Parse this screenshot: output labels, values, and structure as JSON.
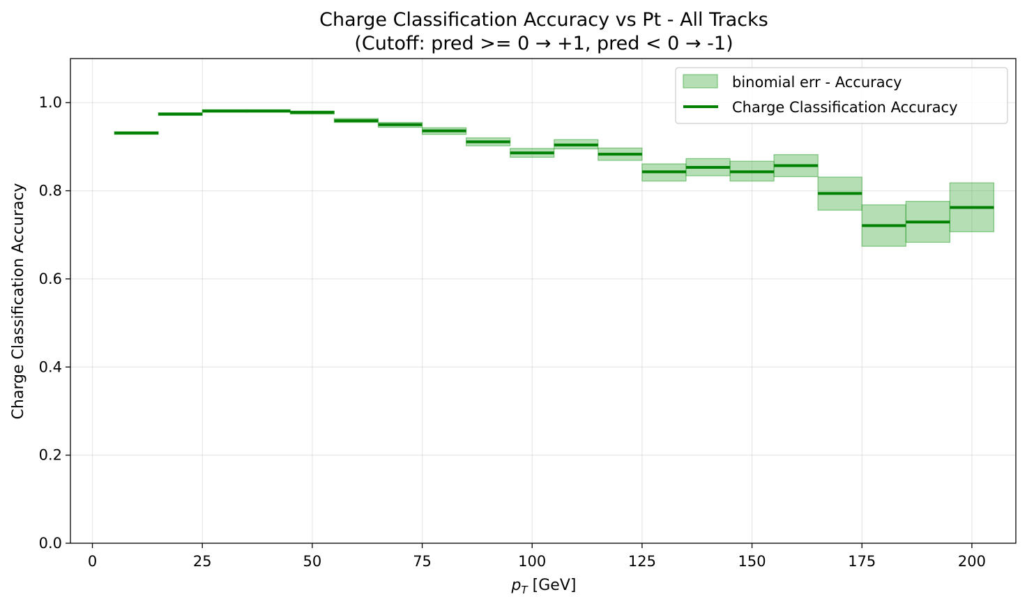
{
  "chart_data": {
    "type": "step",
    "title": "Charge Classification Accuracy vs Pt - All Tracks",
    "subtitle": "(Cutoff: pred >= 0 → +1, pred < 0 → -1)",
    "xlabel_main": "p",
    "xlabel_sub": "T",
    "xlabel_unit": " [GeV]",
    "ylabel": "Charge Classification Accuracy",
    "xlim": [
      -5,
      210
    ],
    "ylim": [
      0.0,
      1.1
    ],
    "xticks": [
      0,
      25,
      50,
      75,
      100,
      125,
      150,
      175,
      200
    ],
    "yticks": [
      0.0,
      0.2,
      0.4,
      0.6,
      0.8,
      1.0
    ],
    "xtick_labels": [
      "0",
      "25",
      "50",
      "75",
      "100",
      "125",
      "150",
      "175",
      "200"
    ],
    "ytick_labels": [
      "0.0",
      "0.2",
      "0.4",
      "0.6",
      "0.8",
      "1.0"
    ],
    "grid": true,
    "legend_position": "top-right",
    "colors": {
      "line": "#008000",
      "band_fill": "#2ca02c",
      "band_edge": "#2ca02c"
    },
    "series": [
      {
        "name": "binomial err - Accuracy",
        "kind": "band",
        "bins": [
          {
            "x0": 5,
            "x1": 15,
            "low": 0.928,
            "high": 0.934
          },
          {
            "x0": 15,
            "x1": 25,
            "low": 0.971,
            "high": 0.977
          },
          {
            "x0": 25,
            "x1": 35,
            "low": 0.978,
            "high": 0.984
          },
          {
            "x0": 35,
            "x1": 45,
            "low": 0.978,
            "high": 0.984
          },
          {
            "x0": 45,
            "x1": 55,
            "low": 0.974,
            "high": 0.981
          },
          {
            "x0": 55,
            "x1": 65,
            "low": 0.955,
            "high": 0.964
          },
          {
            "x0": 65,
            "x1": 75,
            "low": 0.944,
            "high": 0.955
          },
          {
            "x0": 75,
            "x1": 85,
            "low": 0.928,
            "high": 0.943
          },
          {
            "x0": 85,
            "x1": 95,
            "low": 0.902,
            "high": 0.92
          },
          {
            "x0": 95,
            "x1": 105,
            "low": 0.876,
            "high": 0.896
          },
          {
            "x0": 105,
            "x1": 115,
            "low": 0.895,
            "high": 0.916
          },
          {
            "x0": 115,
            "x1": 125,
            "low": 0.869,
            "high": 0.897
          },
          {
            "x0": 125,
            "x1": 135,
            "low": 0.822,
            "high": 0.861
          },
          {
            "x0": 135,
            "x1": 145,
            "low": 0.834,
            "high": 0.873
          },
          {
            "x0": 145,
            "x1": 155,
            "low": 0.822,
            "high": 0.867
          },
          {
            "x0": 155,
            "x1": 165,
            "low": 0.832,
            "high": 0.882
          },
          {
            "x0": 165,
            "x1": 175,
            "low": 0.756,
            "high": 0.831
          },
          {
            "x0": 175,
            "x1": 185,
            "low": 0.674,
            "high": 0.768
          },
          {
            "x0": 185,
            "x1": 195,
            "low": 0.683,
            "high": 0.776
          },
          {
            "x0": 195,
            "x1": 205,
            "low": 0.707,
            "high": 0.818
          }
        ]
      },
      {
        "name": "Charge Classification Accuracy",
        "kind": "step",
        "bins": [
          {
            "x0": 5,
            "x1": 15,
            "value": 0.931
          },
          {
            "x0": 15,
            "x1": 25,
            "value": 0.974
          },
          {
            "x0": 25,
            "x1": 35,
            "value": 0.981
          },
          {
            "x0": 35,
            "x1": 45,
            "value": 0.981
          },
          {
            "x0": 45,
            "x1": 55,
            "value": 0.978
          },
          {
            "x0": 55,
            "x1": 65,
            "value": 0.959
          },
          {
            "x0": 65,
            "x1": 75,
            "value": 0.95
          },
          {
            "x0": 75,
            "x1": 85,
            "value": 0.936
          },
          {
            "x0": 85,
            "x1": 95,
            "value": 0.911
          },
          {
            "x0": 95,
            "x1": 105,
            "value": 0.886
          },
          {
            "x0": 105,
            "x1": 115,
            "value": 0.904
          },
          {
            "x0": 115,
            "x1": 125,
            "value": 0.883
          },
          {
            "x0": 125,
            "x1": 135,
            "value": 0.843
          },
          {
            "x0": 135,
            "x1": 145,
            "value": 0.853
          },
          {
            "x0": 145,
            "x1": 155,
            "value": 0.843
          },
          {
            "x0": 155,
            "x1": 165,
            "value": 0.857
          },
          {
            "x0": 165,
            "x1": 175,
            "value": 0.794
          },
          {
            "x0": 175,
            "x1": 185,
            "value": 0.721
          },
          {
            "x0": 185,
            "x1": 195,
            "value": 0.729
          },
          {
            "x0": 195,
            "x1": 205,
            "value": 0.762
          }
        ]
      }
    ]
  }
}
